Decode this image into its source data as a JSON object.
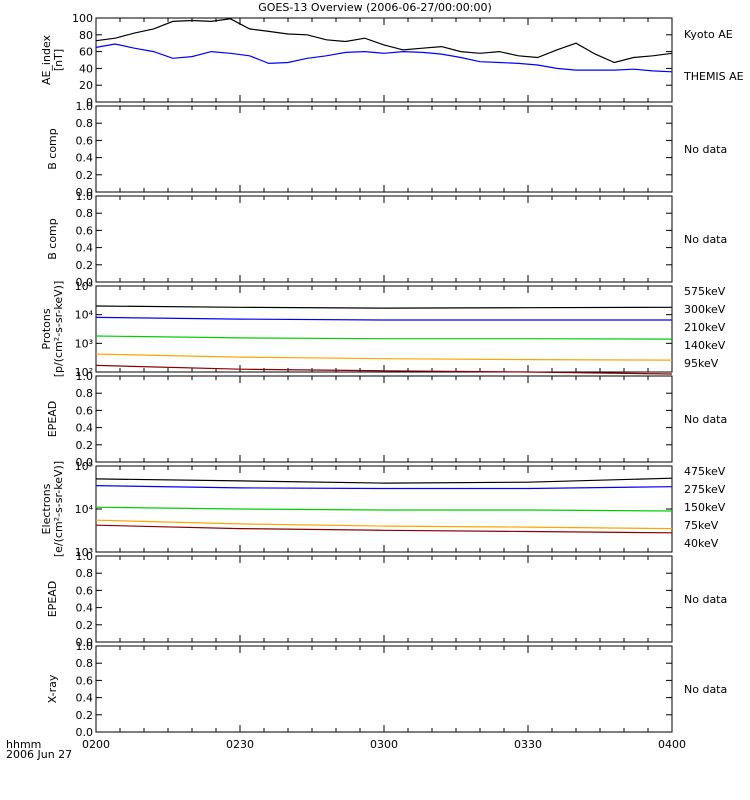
{
  "title": "GOES-13 Overview (2006-06-27/00:00:00)",
  "footer": {
    "time_label": "hhmm",
    "date_label": "2006 Jun 27"
  },
  "colors": {
    "black": "#000000",
    "blue": "#0000ff",
    "green": "#00d000",
    "orange": "#ffa500",
    "darkred": "#8b0000"
  },
  "chart_data": [
    {
      "id": "ae",
      "type": "line",
      "ylabel": [
        "AE_index",
        "[nT]"
      ],
      "ylim": [
        0,
        100
      ],
      "yscale": "linear",
      "yticks": [
        0,
        20,
        40,
        60,
        80,
        100
      ],
      "ticklabels": [
        "0",
        "20",
        "40",
        "60",
        "80",
        "100"
      ],
      "legend": [
        {
          "label": "Kyoto AE",
          "color": "#000000"
        },
        {
          "label": "THEMIS AE",
          "color": "#0000ff"
        }
      ],
      "series": [
        {
          "name": "Kyoto AE",
          "color": "#000000",
          "x": [
            0,
            4,
            8,
            12,
            16,
            20,
            24,
            28,
            32,
            36,
            40,
            44,
            48,
            52,
            56,
            60,
            64,
            68,
            72,
            76,
            80,
            84,
            88,
            92,
            96,
            100,
            104,
            108,
            112,
            116,
            120
          ],
          "y": [
            73,
            76,
            82,
            87,
            96,
            97,
            96,
            99,
            87,
            84,
            81,
            80,
            74,
            72,
            76,
            68,
            62,
            64,
            66,
            60,
            58,
            60,
            55,
            53,
            62,
            70,
            57,
            47,
            53,
            55,
            58
          ]
        },
        {
          "name": "THEMIS AE",
          "color": "#0000ff",
          "x": [
            0,
            4,
            8,
            12,
            16,
            20,
            24,
            28,
            32,
            36,
            40,
            44,
            48,
            52,
            56,
            60,
            64,
            68,
            72,
            76,
            80,
            84,
            88,
            92,
            96,
            100,
            104,
            108,
            112,
            116,
            120
          ],
          "y": [
            65,
            69,
            64,
            60,
            52,
            54,
            60,
            58,
            55,
            46,
            47,
            52,
            55,
            59,
            60,
            58,
            60,
            59,
            57,
            53,
            48,
            47,
            46,
            44,
            40,
            38,
            38,
            38,
            39,
            37,
            36
          ]
        }
      ]
    },
    {
      "id": "bcomp1",
      "type": "line",
      "ylabel": [
        "B comp"
      ],
      "ylim": [
        0,
        1
      ],
      "yscale": "linear",
      "yticks": [
        0,
        0.2,
        0.4,
        0.6,
        0.8,
        1.0
      ],
      "ticklabels": [
        "0.0",
        "0.2",
        "0.4",
        "0.6",
        "0.8",
        "1.0"
      ],
      "legend": [
        {
          "label": "No data",
          "color": "#000000"
        }
      ],
      "series": []
    },
    {
      "id": "bcomp2",
      "type": "line",
      "ylabel": [
        "B comp"
      ],
      "ylim": [
        0,
        1
      ],
      "yscale": "linear",
      "yticks": [
        0,
        0.2,
        0.4,
        0.6,
        0.8,
        1.0
      ],
      "ticklabels": [
        "0.0",
        "0.2",
        "0.4",
        "0.6",
        "0.8",
        "1.0"
      ],
      "legend": [
        {
          "label": "No data",
          "color": "#000000"
        }
      ],
      "series": []
    },
    {
      "id": "protons",
      "type": "line",
      "ylabel": [
        "Protons",
        "[p/(cm²-s-sr-keV)]"
      ],
      "ylim": [
        100,
        100000
      ],
      "yscale": "log",
      "yticks": [
        100,
        1000,
        10000,
        100000
      ],
      "ticklabels": [
        "10²",
        "10³",
        "10⁴",
        "10⁵"
      ],
      "legend": [
        {
          "label": "575keV",
          "color": "#8b0000"
        },
        {
          "label": "300keV",
          "color": "#ffa500"
        },
        {
          "label": "210keV",
          "color": "#00d000"
        },
        {
          "label": "140keV",
          "color": "#0000ff"
        },
        {
          "label": "95keV",
          "color": "#000000"
        }
      ],
      "series": [
        {
          "name": "95keV",
          "color": "#000000",
          "x": [
            0,
            30,
            60,
            90,
            120
          ],
          "y": [
            20000,
            18000,
            17000,
            17500,
            18000
          ]
        },
        {
          "name": "140keV",
          "color": "#0000ff",
          "x": [
            0,
            30,
            60,
            90,
            120
          ],
          "y": [
            8000,
            7000,
            6500,
            6500,
            6500
          ]
        },
        {
          "name": "210keV",
          "color": "#00d000",
          "x": [
            0,
            30,
            60,
            90,
            120
          ],
          "y": [
            1800,
            1550,
            1450,
            1450,
            1400
          ]
        },
        {
          "name": "300keV",
          "color": "#ffa500",
          "x": [
            0,
            30,
            60,
            90,
            120
          ],
          "y": [
            420,
            330,
            290,
            270,
            260
          ]
        },
        {
          "name": "575keV",
          "color": "#8b0000",
          "x": [
            0,
            30,
            60,
            90,
            120
          ],
          "y": [
            170,
            125,
            110,
            100,
            85
          ]
        }
      ]
    },
    {
      "id": "epead1",
      "type": "line",
      "ylabel": [
        "EPEAD"
      ],
      "ylim": [
        0,
        1
      ],
      "yscale": "linear",
      "yticks": [
        0,
        0.2,
        0.4,
        0.6,
        0.8,
        1.0
      ],
      "ticklabels": [
        "0.0",
        "0.2",
        "0.4",
        "0.6",
        "0.8",
        "1.0"
      ],
      "legend": [
        {
          "label": "No data",
          "color": "#000000"
        }
      ],
      "series": []
    },
    {
      "id": "electrons",
      "type": "line",
      "ylabel": [
        "Electrons",
        "[e/(cm²-s-sr-keV)]"
      ],
      "ylim": [
        1000,
        100000
      ],
      "yscale": "log",
      "yticks": [
        1000,
        10000,
        100000
      ],
      "ticklabels": [
        "10³",
        "10⁴",
        "10⁵"
      ],
      "legend": [
        {
          "label": "475keV",
          "color": "#8b0000"
        },
        {
          "label": "275keV",
          "color": "#ffa500"
        },
        {
          "label": "150keV",
          "color": "#00d000"
        },
        {
          "label": "75keV",
          "color": "#0000ff"
        },
        {
          "label": "40keV",
          "color": "#000000"
        }
      ],
      "series": [
        {
          "name": "40keV",
          "color": "#000000",
          "x": [
            0,
            30,
            60,
            90,
            120
          ],
          "y": [
            50000,
            45000,
            40000,
            42000,
            52000
          ]
        },
        {
          "name": "75keV",
          "color": "#0000ff",
          "x": [
            0,
            30,
            60,
            90,
            120
          ],
          "y": [
            35000,
            31000,
            30000,
            30000,
            33000
          ]
        },
        {
          "name": "150keV",
          "color": "#00d000",
          "x": [
            0,
            30,
            60,
            90,
            120
          ],
          "y": [
            11000,
            10000,
            9500,
            9500,
            9000
          ]
        },
        {
          "name": "275keV",
          "color": "#ffa500",
          "x": [
            0,
            30,
            60,
            90,
            120
          ],
          "y": [
            5500,
            4500,
            4000,
            3800,
            3500
          ]
        },
        {
          "name": "475keV",
          "color": "#8b0000",
          "x": [
            0,
            30,
            60,
            90,
            120
          ],
          "y": [
            4200,
            3500,
            3200,
            3000,
            2800
          ]
        }
      ]
    },
    {
      "id": "epead2",
      "type": "line",
      "ylabel": [
        "EPEAD"
      ],
      "ylim": [
        0,
        1
      ],
      "yscale": "linear",
      "yticks": [
        0,
        0.2,
        0.4,
        0.6,
        0.8,
        1.0
      ],
      "ticklabels": [
        "0.0",
        "0.2",
        "0.4",
        "0.6",
        "0.8",
        "1.0"
      ],
      "legend": [
        {
          "label": "No data",
          "color": "#000000"
        }
      ],
      "series": []
    },
    {
      "id": "xray",
      "type": "line",
      "ylabel": [
        "X-ray"
      ],
      "ylim": [
        0,
        1
      ],
      "yscale": "linear",
      "yticks": [
        0,
        0.2,
        0.4,
        0.6,
        0.8,
        1.0
      ],
      "ticklabels": [
        "0.0",
        "0.2",
        "0.4",
        "0.6",
        "0.8",
        "1.0"
      ],
      "legend": [
        {
          "label": "No data",
          "color": "#000000"
        }
      ],
      "series": [],
      "xaxis": {
        "ticks": [
          0,
          30,
          60,
          90,
          120
        ],
        "ticklabels": [
          "0200",
          "0230",
          "0300",
          "0330",
          "0400"
        ],
        "xlim": [
          0,
          120
        ]
      }
    }
  ]
}
